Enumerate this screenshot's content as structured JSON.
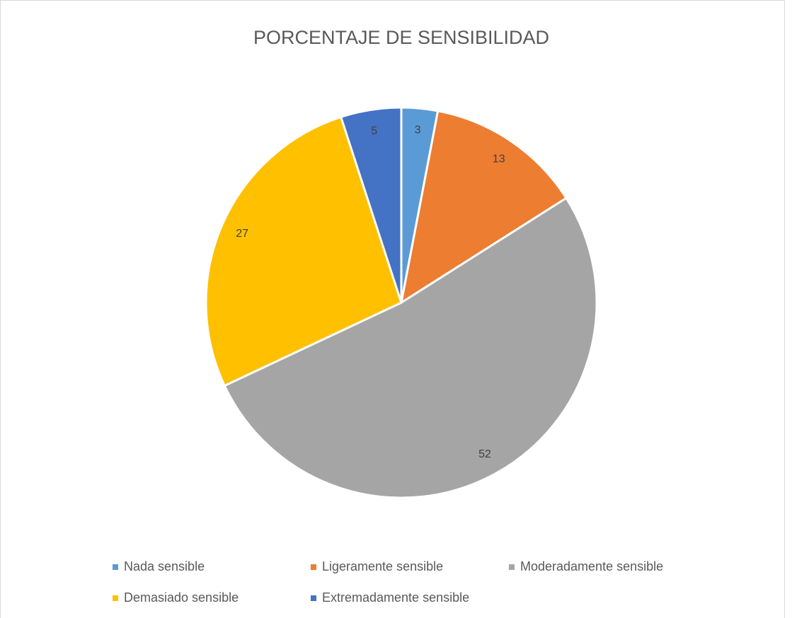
{
  "chart_data": {
    "type": "pie",
    "title": "PORCENTAJE DE SENSIBILIDAD",
    "categories": [
      "Nada sensible",
      "Ligeramente sensible",
      "Moderadamente sensible",
      "Demasiado sensible",
      "Extremadamente sensible"
    ],
    "values": [
      3,
      13,
      52,
      27,
      5
    ],
    "colors": [
      "#5b9bd5",
      "#ed7d31",
      "#a5a5a5",
      "#ffc000",
      "#4472c4"
    ],
    "legend": "bottom"
  }
}
